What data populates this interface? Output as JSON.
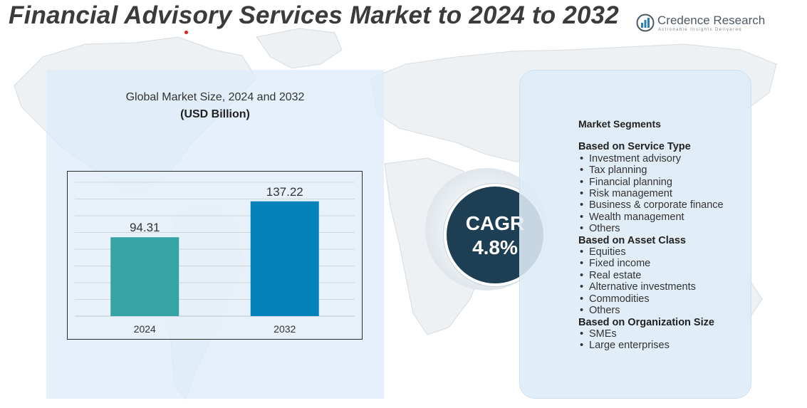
{
  "title": "Financial Advisory Services Market to 2024 to 2032",
  "brand": {
    "name": "Credence Research",
    "tagline": "Actionable Insights Delivered",
    "logo_icon": "bar-chart-logo-icon"
  },
  "colors": {
    "bar_2024": "#36a3a4",
    "bar_2032": "#0383ba",
    "cagr_circle": "#1d3e53",
    "panel": "#deecf8"
  },
  "chart_data": {
    "type": "bar",
    "title": "Global Market Size,  2024 and 2032",
    "subtitle": "(USD Billion)",
    "categories": [
      "2024",
      "2032"
    ],
    "values": [
      94.31,
      137.22
    ],
    "value_labels": [
      "94.31",
      "137.22"
    ],
    "ylim": [
      0,
      160
    ],
    "grid": true,
    "legend": "none"
  },
  "cagr": {
    "label": "CAGR",
    "value": "4.8%"
  },
  "segments": {
    "heading": "Market Segments",
    "groups": [
      {
        "title": "Based on Service Type",
        "items": [
          "Investment advisory",
          "Tax planning",
          "Financial planning",
          "Risk management",
          "Business & corporate finance",
          "Wealth management",
          "Others"
        ]
      },
      {
        "title": "Based on Asset  Class",
        "items": [
          "Equities",
          "Fixed income",
          "Real estate",
          "Alternative investments",
          "Commodities",
          "Others"
        ]
      },
      {
        "title": "Based on Organization Size",
        "items": [
          "SMEs",
          "Large enterprises"
        ]
      }
    ]
  }
}
